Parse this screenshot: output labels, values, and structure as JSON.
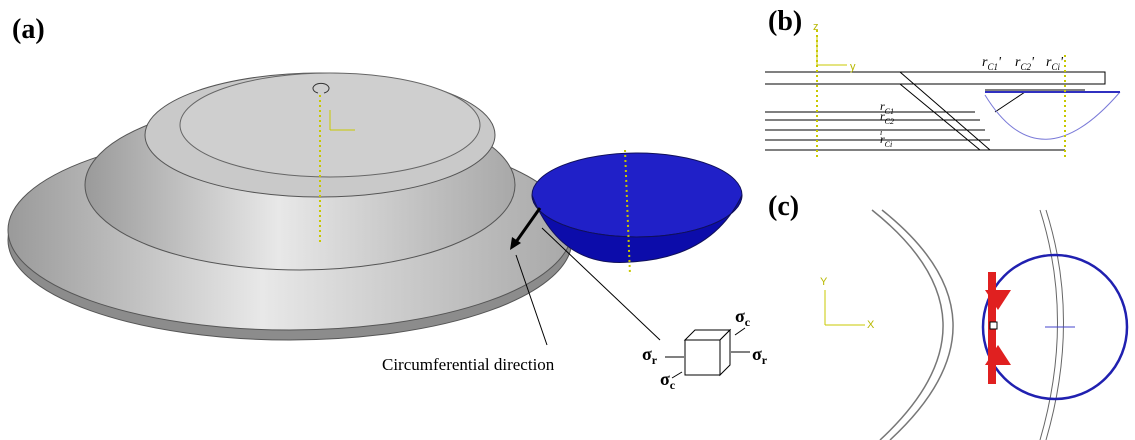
{
  "panels": {
    "a": {
      "label": "(a)",
      "annotation": "Circumferential direction",
      "stress": [
        {
          "symbol": "σ",
          "sub": "c"
        },
        {
          "symbol": "σ",
          "sub": "r"
        },
        {
          "symbol": "σ",
          "sub": "r"
        },
        {
          "symbol": "σ",
          "sub": "c"
        }
      ]
    },
    "b": {
      "label": "(b)",
      "axes": [
        "z",
        "y"
      ],
      "radii_top": [
        {
          "symbol": "r",
          "sub": "C1",
          "suffix": "'"
        },
        {
          "symbol": "r",
          "sub": "C2",
          "suffix": "'"
        },
        {
          "symbol": "r",
          "sub": "Ci",
          "suffix": "'"
        }
      ],
      "radii_side": [
        {
          "symbol": "r",
          "sub": "C1"
        },
        {
          "symbol": "r",
          "sub": "C2"
        },
        {
          "symbol": "",
          "sub": "i"
        },
        {
          "symbol": "r",
          "sub": "Ci"
        }
      ]
    },
    "c": {
      "label": "(c)",
      "axes": [
        "Y",
        "X"
      ]
    }
  }
}
